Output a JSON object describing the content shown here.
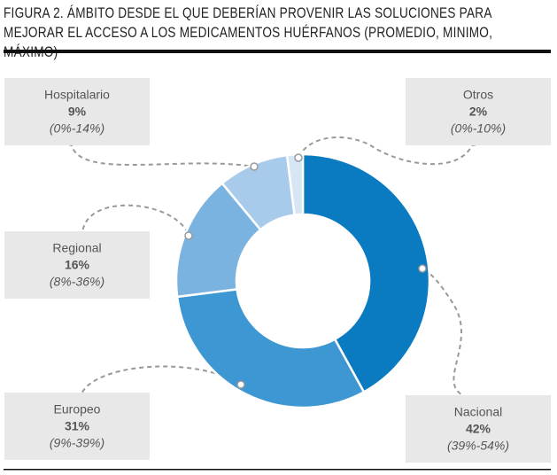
{
  "chart_data": {
    "type": "donut",
    "title": "FIGURA 2. ÁMBITO DESDE EL QUE DEBERÍAN PROVENIR LAS SOLUCIONES PARA MEJORAR EL ACCESO A LOS MEDICAMENTOS HUÉRFANOS (PROMEDIO, MINIMO, MÁXIMO)",
    "categories": [
      "Nacional",
      "Europeo",
      "Regional",
      "Hospitalario",
      "Otros"
    ],
    "values": [
      42,
      31,
      16,
      9,
      2
    ],
    "value_labels": [
      "42%",
      "31%",
      "16%",
      "9%",
      "2%"
    ],
    "ranges": [
      "(39%-54%)",
      "(9%-39%)",
      "(8%-36%)",
      "(0%-14%)",
      "(0%-10%)"
    ],
    "colors": [
      "#0a7bc1",
      "#3d97d3",
      "#7ab3e0",
      "#a9cbeb",
      "#d6e6f5"
    ]
  }
}
